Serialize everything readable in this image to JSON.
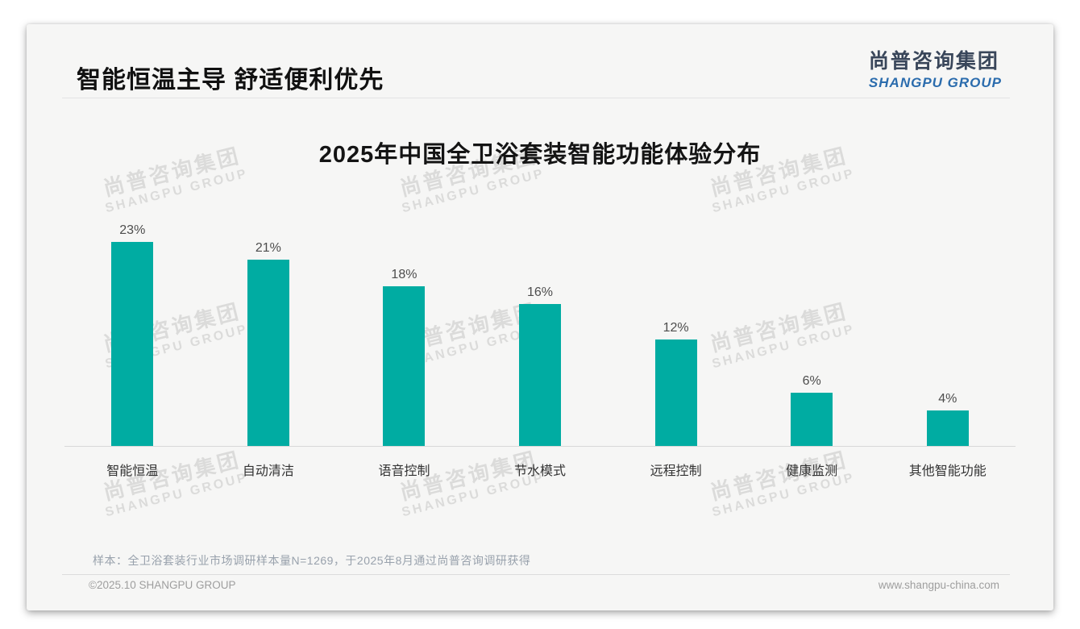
{
  "header": {
    "title": "智能恒温主导 舒适便利优先",
    "logo_cn": "尚普咨询集团",
    "logo_en": "SHANGPU GROUP"
  },
  "watermark": {
    "line1": "尚普咨询集团",
    "line2": "SHANGPU GROUP"
  },
  "chart_data": {
    "type": "bar",
    "title": "2025年中国全卫浴套装智能功能体验分布",
    "categories": [
      "智能恒温",
      "自动清洁",
      "语音控制",
      "节水模式",
      "远程控制",
      "健康监测",
      "其他智能功能"
    ],
    "values": [
      23,
      21,
      18,
      16,
      12,
      6,
      4
    ],
    "value_labels": [
      "23%",
      "21%",
      "18%",
      "16%",
      "12%",
      "6%",
      "4%"
    ],
    "unit": "%",
    "bar_color": "#00ACA2",
    "ylim": [
      0,
      25
    ],
    "grid": false,
    "legend": "none",
    "xlabel": "",
    "ylabel": ""
  },
  "footnote": "样本：全卫浴套装行业市场调研样本量N=1269，于2025年8月通过尚普咨询调研获得",
  "footer": {
    "left": "©2025.10 SHANGPU GROUP",
    "right": "www.shangpu-china.com"
  },
  "colors": {
    "bar": "#00ACA2",
    "card_bg": "#F6F6F5",
    "logo_dark": "#39465A",
    "logo_blue": "#2B6CAD",
    "divider": "#E4E4E4"
  }
}
